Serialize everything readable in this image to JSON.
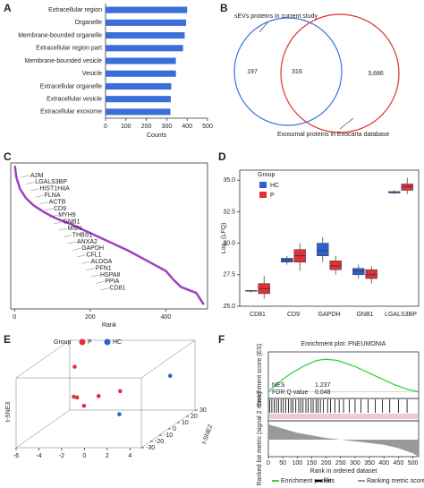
{
  "chart_data": [
    {
      "type": "hbar",
      "panel": "A",
      "categories": [
        "Extracellular region",
        "Organelle",
        "Membrane-bounded organelle",
        "Extracellular region part",
        "Membrane-bounded vesicle",
        "Vesicle",
        "Extracellular organelle",
        "Extracellular vesicle",
        "Extracellular exosome"
      ],
      "values": [
        400,
        395,
        388,
        380,
        345,
        345,
        322,
        320,
        318
      ],
      "color": "#3a6fd8",
      "xlim": [
        0,
        500
      ],
      "xticks": [
        0,
        100,
        200,
        300,
        400,
        500
      ],
      "xlabel": "Counts"
    },
    {
      "type": "venn",
      "panel": "B",
      "sets": [
        {
          "name": "sEVs proteins in current study",
          "color": "#3a6fd8"
        },
        {
          "name": "Exosomal proteins in Exocarta database",
          "color": "#e03030"
        }
      ],
      "values": [
        197,
        316,
        3686
      ],
      "value_labels": [
        "197",
        "316",
        "3,686"
      ]
    },
    {
      "type": "rank",
      "panel": "C",
      "xlabel": "Rank",
      "xlim": [
        -10,
        510
      ],
      "xticks": [
        0,
        200,
        400
      ],
      "ylim": [
        0,
        10
      ],
      "color": "#a040c0",
      "x": [
        1,
        5,
        15,
        30,
        50,
        80,
        110,
        150,
        200,
        250,
        300,
        350,
        400,
        420,
        440,
        460,
        480,
        500
      ],
      "values": [
        9.8,
        9.0,
        8.2,
        7.6,
        7.1,
        6.6,
        6.2,
        5.8,
        5.2,
        4.6,
        4.0,
        3.3,
        2.6,
        2.0,
        1.5,
        1.3,
        1.1,
        0.3
      ],
      "annotations": [
        "A2M",
        "LGALS3BP",
        "HIST1H4A",
        "FLNA",
        "ACTB",
        "CD9",
        "MYH9",
        "GNB1",
        "MSN",
        "THBS1",
        "ANXA2",
        "GAPDH",
        "CFL1",
        "ALDOA",
        "PFN1",
        "HSPA8",
        "PPIA",
        "CD81"
      ]
    },
    {
      "type": "box",
      "panel": "D",
      "ylabel": "Log₂ (LFQ)",
      "legend_title": "Group",
      "categories": [
        "CD81",
        "CD9",
        "GAPDH",
        "GNB1",
        "LGALS3BP"
      ],
      "ylim": [
        25,
        35.8
      ],
      "yticks": [
        {
          "value": 25,
          "label": "25.0"
        },
        {
          "value": 27.5,
          "label": "27.5"
        },
        {
          "value": 30,
          "label": "30.0"
        },
        {
          "value": 32.5,
          "label": "32.5"
        },
        {
          "value": 35,
          "label": "35.0"
        }
      ],
      "series": [
        {
          "name": "HC",
          "color": "#2f5fd0",
          "boxes": [
            {
              "min": 26.1,
              "q1": 26.2,
              "median": 26.2,
              "q3": 26.25,
              "max": 26.3
            },
            {
              "min": 28.3,
              "q1": 28.5,
              "median": 28.7,
              "q3": 28.8,
              "max": 29.0
            },
            {
              "min": 28.5,
              "q1": 29.0,
              "median": 29.4,
              "q3": 30.0,
              "max": 30.5
            },
            {
              "min": 27.2,
              "q1": 27.5,
              "median": 27.8,
              "q3": 28.0,
              "max": 28.3
            },
            {
              "min": 33.9,
              "q1": 34.0,
              "median": 34.0,
              "q3": 34.1,
              "max": 34.2
            }
          ]
        },
        {
          "name": "P",
          "color": "#e0303a",
          "boxes": [
            {
              "min": 25.6,
              "q1": 26.0,
              "median": 26.4,
              "q3": 26.8,
              "max": 27.4
            },
            {
              "min": 27.8,
              "q1": 28.5,
              "median": 29.0,
              "q3": 29.5,
              "max": 30.0
            },
            {
              "min": 27.5,
              "q1": 27.9,
              "median": 28.2,
              "q3": 28.6,
              "max": 29.0
            },
            {
              "min": 26.8,
              "q1": 27.2,
              "median": 27.5,
              "q3": 27.9,
              "max": 28.2
            },
            {
              "min": 33.9,
              "q1": 34.2,
              "median": 34.5,
              "q3": 34.7,
              "max": 35.2
            }
          ]
        }
      ]
    },
    {
      "type": "scatter3d",
      "panel": "E",
      "legend_title": "Group",
      "xlim": [
        -6,
        5
      ],
      "xticks": [
        -6,
        -4,
        -2,
        0,
        2,
        4
      ],
      "ylim": [
        -30,
        30
      ],
      "yticks": [
        -30,
        -20,
        -10,
        0,
        10,
        20,
        30
      ],
      "ylabel": "t-SNE2",
      "zlim": [
        -20,
        20
      ],
      "zlabel": "t-SNE3",
      "series": [
        {
          "name": "P",
          "color": "#e0303a",
          "points": [
            {
              "x": -4,
              "y": 10,
              "z": 12
            },
            {
              "x": -3,
              "y": 0,
              "z": -2
            },
            {
              "x": -2.5,
              "y": -10,
              "z": 2
            },
            {
              "x": -1.5,
              "y": 5,
              "z": -3
            },
            {
              "x": -2,
              "y": -5,
              "z": -5
            },
            {
              "x": 0,
              "y": 10,
              "z": -2
            }
          ]
        },
        {
          "name": "HC",
          "color": "#2f5fd0",
          "points": [
            {
              "x": 4,
              "y": 15,
              "z": 5
            },
            {
              "x": 1.5,
              "y": -10,
              "z": -8
            }
          ]
        }
      ]
    },
    {
      "type": "gsea",
      "panel": "F",
      "title": "Enrichment plot: PNEUMONIA",
      "ylabel": "Enrichment score (ES)",
      "ylabel2": "Ranked list metric (signal 2 noise)",
      "xlabel": "Rank in ordered dataset",
      "xlim": [
        0,
        520
      ],
      "xticks": [
        0,
        50,
        100,
        150,
        200,
        250,
        300,
        350,
        400,
        450,
        500
      ],
      "ylim": [
        -0.1,
        0.6
      ],
      "y2lim": [
        -1,
        1
      ],
      "stats": [
        {
          "label": "NES",
          "value": 1.237
        },
        {
          "label": "FDR Q value",
          "value": 0.048
        }
      ],
      "series": [
        {
          "name": "Enrichment profile",
          "color": "#3cd03c",
          "x": [
            0,
            20,
            40,
            60,
            80,
            100,
            120,
            140,
            160,
            180,
            200,
            220,
            240,
            260,
            280,
            300,
            320,
            340,
            360,
            380,
            400,
            420,
            440,
            460,
            480,
            500,
            520
          ],
          "values": [
            0,
            0.08,
            0.15,
            0.22,
            0.28,
            0.33,
            0.38,
            0.42,
            0.46,
            0.48,
            0.49,
            0.48,
            0.47,
            0.44,
            0.41,
            0.38,
            0.34,
            0.3,
            0.26,
            0.22,
            0.18,
            0.14,
            0.1,
            0.07,
            0.04,
            0.02,
            0
          ]
        },
        {
          "name": "Hits",
          "color": "#000000",
          "ranks": [
            5,
            12,
            20,
            28,
            35,
            44,
            52,
            60,
            70,
            78,
            85,
            95,
            105,
            112,
            120,
            130,
            138,
            148,
            155,
            165,
            172,
            180,
            190,
            205,
            215,
            230,
            245,
            260,
            280,
            300,
            320,
            345,
            370,
            395,
            420,
            450,
            480
          ]
        },
        {
          "name": "Ranking metric scores",
          "color": "#999999",
          "x": [
            0,
            100,
            200,
            300,
            400,
            450,
            500,
            520
          ],
          "values": [
            0.9,
            0.4,
            0.1,
            -0.1,
            -0.3,
            -0.5,
            -0.8,
            -1
          ]
        }
      ]
    }
  ]
}
